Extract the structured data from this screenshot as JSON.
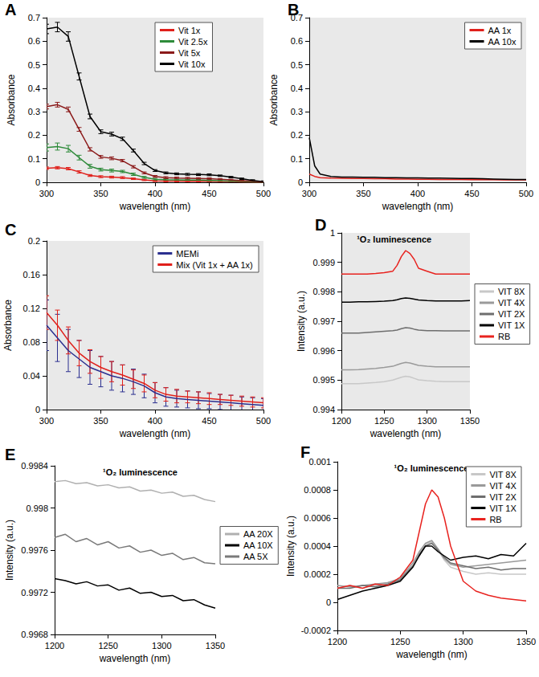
{
  "chart_data": [
    {
      "panel": "A",
      "type": "line",
      "x_label": "wavelength (nm)",
      "y_label": "Absorbance",
      "x": [
        300,
        310,
        320,
        330,
        340,
        350,
        360,
        370,
        380,
        390,
        400,
        410,
        420,
        430,
        440,
        450,
        460,
        470,
        480,
        490,
        500
      ],
      "xlim": [
        300,
        500
      ],
      "xticks": [
        300,
        350,
        400,
        450,
        500
      ],
      "ylim": [
        0,
        0.7
      ],
      "yticks": [
        0,
        0.1,
        0.2,
        0.3,
        0.4,
        0.5,
        0.6,
        0.7
      ],
      "grid": false,
      "legend": "upper center",
      "series": [
        {
          "name": "Vit 1x",
          "color": "#e0201b",
          "values": [
            0.06,
            0.062,
            0.058,
            0.044,
            0.029,
            0.024,
            0.022,
            0.02,
            0.015,
            0.01,
            0.006,
            0.005,
            0.005,
            0.004,
            0.004,
            0.004,
            0.003,
            0.003,
            0.002,
            0.001,
            0.001
          ],
          "errors": [
            0.005,
            0.005,
            0.005,
            0.005,
            0.004,
            0.004,
            0.004,
            0.004,
            0.003,
            0.003,
            0.003,
            0.003,
            0.003,
            0.003,
            0.003,
            0.003,
            0.003,
            0.003,
            0.003,
            0.003,
            0.003
          ]
        },
        {
          "name": "Vit 2.5x",
          "color": "#2e8b3a",
          "values": [
            0.148,
            0.152,
            0.143,
            0.105,
            0.068,
            0.054,
            0.05,
            0.046,
            0.034,
            0.021,
            0.013,
            0.011,
            0.01,
            0.009,
            0.009,
            0.008,
            0.007,
            0.005,
            0.004,
            0.002,
            0.001
          ],
          "errors": [
            0.015,
            0.015,
            0.014,
            0.01,
            0.008,
            0.006,
            0.006,
            0.005,
            0.005,
            0.004,
            0.004,
            0.004,
            0.004,
            0.004,
            0.004,
            0.004,
            0.003,
            0.003,
            0.003,
            0.003,
            0.003
          ]
        },
        {
          "name": "Vit 5x",
          "color": "#8b1a1a",
          "values": [
            0.322,
            0.33,
            0.31,
            0.225,
            0.14,
            0.108,
            0.102,
            0.092,
            0.066,
            0.04,
            0.025,
            0.02,
            0.018,
            0.017,
            0.016,
            0.015,
            0.013,
            0.01,
            0.007,
            0.004,
            0.002
          ],
          "errors": [
            0.01,
            0.01,
            0.01,
            0.008,
            0.007,
            0.006,
            0.006,
            0.005,
            0.005,
            0.004,
            0.004,
            0.004,
            0.004,
            0.004,
            0.004,
            0.004,
            0.003,
            0.003,
            0.003,
            0.003,
            0.003
          ]
        },
        {
          "name": "Vit 10x",
          "color": "#000000",
          "values": [
            0.652,
            0.66,
            0.62,
            0.45,
            0.28,
            0.215,
            0.205,
            0.185,
            0.135,
            0.08,
            0.05,
            0.04,
            0.036,
            0.034,
            0.033,
            0.032,
            0.028,
            0.022,
            0.015,
            0.008,
            0.003
          ],
          "errors": [
            0.02,
            0.02,
            0.02,
            0.015,
            0.01,
            0.008,
            0.008,
            0.007,
            0.006,
            0.005,
            0.004,
            0.004,
            0.004,
            0.004,
            0.004,
            0.004,
            0.003,
            0.003,
            0.003,
            0.003,
            0.003
          ]
        }
      ]
    },
    {
      "panel": "B",
      "type": "line",
      "x_label": "wavelength (nm)",
      "y_label": "Absorbance",
      "x": [
        300,
        305,
        310,
        320,
        330,
        340,
        350,
        360,
        370,
        380,
        390,
        400,
        410,
        420,
        430,
        440,
        450,
        460,
        470,
        480,
        490,
        500
      ],
      "xlim": [
        300,
        500
      ],
      "xticks": [
        300,
        350,
        400,
        450,
        500
      ],
      "ylim": [
        0,
        0.7
      ],
      "yticks": [
        0,
        0.1,
        0.2,
        0.3,
        0.4,
        0.5,
        0.6,
        0.7
      ],
      "grid": false,
      "legend": "upper right",
      "series": [
        {
          "name": "AA 1x",
          "color": "#e0201b",
          "values": [
            0.035,
            0.025,
            0.02,
            0.018,
            0.017,
            0.016,
            0.016,
            0.015,
            0.015,
            0.014,
            0.014,
            0.013,
            0.013,
            0.012,
            0.012,
            0.012,
            0.011,
            0.011,
            0.011,
            0.01,
            0.01,
            0.01
          ]
        },
        {
          "name": "AA 10x",
          "color": "#000000",
          "values": [
            0.19,
            0.07,
            0.035,
            0.025,
            0.022,
            0.022,
            0.021,
            0.021,
            0.02,
            0.02,
            0.019,
            0.019,
            0.018,
            0.018,
            0.017,
            0.016,
            0.016,
            0.015,
            0.014,
            0.013,
            0.012,
            0.012
          ]
        }
      ]
    },
    {
      "panel": "C",
      "type": "line",
      "x_label": "wavelength (nm)",
      "y_label": "Absorbance",
      "x": [
        300,
        310,
        320,
        330,
        340,
        350,
        360,
        370,
        380,
        390,
        400,
        410,
        420,
        430,
        440,
        450,
        460,
        470,
        480,
        490,
        500
      ],
      "xlim": [
        300,
        500
      ],
      "xticks": [
        300,
        350,
        400,
        450,
        500
      ],
      "ylim": [
        0,
        0.2
      ],
      "yticks": [
        0,
        0.04,
        0.08,
        0.12,
        0.16,
        0.2
      ],
      "grid": false,
      "legend": "upper right",
      "series": [
        {
          "name": "MEMi",
          "color": "#2b2f8f",
          "values": [
            0.1,
            0.085,
            0.07,
            0.06,
            0.05,
            0.045,
            0.04,
            0.037,
            0.033,
            0.028,
            0.02,
            0.015,
            0.013,
            0.012,
            0.011,
            0.01,
            0.009,
            0.008,
            0.007,
            0.006,
            0.005
          ],
          "errors": [
            0.03,
            0.028,
            0.025,
            0.022,
            0.02,
            0.018,
            0.017,
            0.016,
            0.015,
            0.014,
            0.012,
            0.011,
            0.01,
            0.01,
            0.01,
            0.009,
            0.009,
            0.009,
            0.008,
            0.008,
            0.008
          ]
        },
        {
          "name": "Mix (Vit 1x + AA 1x)",
          "color": "#e0201b",
          "values": [
            0.115,
            0.1,
            0.082,
            0.067,
            0.057,
            0.05,
            0.045,
            0.041,
            0.036,
            0.031,
            0.023,
            0.018,
            0.016,
            0.015,
            0.014,
            0.013,
            0.012,
            0.011,
            0.01,
            0.009,
            0.008
          ],
          "errors": [
            0.02,
            0.018,
            0.016,
            0.015,
            0.014,
            0.013,
            0.012,
            0.012,
            0.011,
            0.01,
            0.009,
            0.008,
            0.008,
            0.007,
            0.007,
            0.007,
            0.006,
            0.006,
            0.006,
            0.006,
            0.006
          ]
        }
      ]
    },
    {
      "panel": "D",
      "type": "line",
      "title": "¹O₂ luminescence",
      "x_label": "wavelength (nm)",
      "y_label": "Intensity (a.u.)",
      "x": [
        1200,
        1210,
        1220,
        1230,
        1240,
        1250,
        1260,
        1265,
        1270,
        1275,
        1280,
        1285,
        1290,
        1300,
        1310,
        1320,
        1330,
        1340,
        1350
      ],
      "xlim": [
        1200,
        1350
      ],
      "xticks": [
        1200,
        1250,
        1300,
        1350
      ],
      "ylim": [
        0.994,
        1
      ],
      "yticks": [
        0.994,
        0.995,
        0.996,
        0.997,
        0.998,
        0.999,
        1
      ],
      "grid": false,
      "legend": "right",
      "series": [
        {
          "name": "VIT 8X",
          "color": "#c8c8c8",
          "values": [
            0.99488,
            0.99488,
            0.99488,
            0.9949,
            0.99492,
            0.99495,
            0.995,
            0.99505,
            0.9951,
            0.99513,
            0.99511,
            0.99506,
            0.99501,
            0.99498,
            0.99496,
            0.99495,
            0.99495,
            0.99495,
            0.99495
          ]
        },
        {
          "name": "VIT 4X",
          "color": "#9a9a9a",
          "values": [
            0.99535,
            0.99535,
            0.99536,
            0.99538,
            0.9954,
            0.99543,
            0.99547,
            0.99552,
            0.99557,
            0.9956,
            0.99558,
            0.99554,
            0.9955,
            0.99547,
            0.99545,
            0.99545,
            0.99545,
            0.99545,
            0.99545
          ]
        },
        {
          "name": "VIT 2X",
          "color": "#6e6e6e",
          "values": [
            0.9966,
            0.9966,
            0.9966,
            0.99662,
            0.99664,
            0.99666,
            0.99668,
            0.9967,
            0.99675,
            0.99678,
            0.99677,
            0.99673,
            0.9967,
            0.99668,
            0.99668,
            0.99667,
            0.99667,
            0.99667,
            0.99667
          ]
        },
        {
          "name": "VIT 1X",
          "color": "#000000",
          "values": [
            0.99765,
            0.99765,
            0.99766,
            0.99766,
            0.99767,
            0.99768,
            0.9977,
            0.99773,
            0.99777,
            0.99779,
            0.99778,
            0.99775,
            0.99772,
            0.9977,
            0.99769,
            0.99769,
            0.99769,
            0.99769,
            0.9977
          ]
        },
        {
          "name": "RB",
          "color": "#e8231f",
          "values": [
            0.9986,
            0.9986,
            0.9986,
            0.9986,
            0.99862,
            0.99865,
            0.9987,
            0.9989,
            0.9992,
            0.9994,
            0.9993,
            0.9991,
            0.9988,
            0.9987,
            0.9986,
            0.9986,
            0.9986,
            0.9986,
            0.9986
          ]
        }
      ]
    },
    {
      "panel": "E",
      "type": "line",
      "title": "¹O₂ luminescence",
      "x_label": "wavelength (nm)",
      "y_label": "Intensity (a.u.)",
      "x": [
        1200,
        1210,
        1220,
        1230,
        1240,
        1250,
        1260,
        1270,
        1280,
        1290,
        1300,
        1310,
        1320,
        1330,
        1340,
        1350
      ],
      "xlim": [
        1200,
        1350
      ],
      "xticks": [
        1200,
        1250,
        1300,
        1350
      ],
      "ylim": [
        0.9968,
        0.9984
      ],
      "yticks": [
        0.9968,
        0.9972,
        0.9976,
        0.998,
        0.9984
      ],
      "grid": false,
      "legend": "right",
      "series": [
        {
          "name": "AA 20X",
          "color": "#b0b0b0",
          "values": [
            0.99825,
            0.99826,
            0.99823,
            0.99824,
            0.99821,
            0.99822,
            0.99819,
            0.9982,
            0.99816,
            0.99817,
            0.99814,
            0.99815,
            0.99811,
            0.99812,
            0.99808,
            0.99806
          ]
        },
        {
          "name": "AA 10X",
          "color": "#000000",
          "values": [
            0.99733,
            0.99731,
            0.99728,
            0.9973,
            0.99726,
            0.99727,
            0.99722,
            0.99724,
            0.99719,
            0.9972,
            0.99716,
            0.99717,
            0.99712,
            0.99713,
            0.99708,
            0.99705
          ]
        },
        {
          "name": "AA 5X",
          "color": "#7a7a7a",
          "values": [
            0.99772,
            0.99775,
            0.99768,
            0.99771,
            0.99765,
            0.99768,
            0.99762,
            0.99764,
            0.99758,
            0.9976,
            0.99755,
            0.99757,
            0.99751,
            0.99753,
            0.99748,
            0.99747
          ]
        }
      ]
    },
    {
      "panel": "F",
      "type": "line",
      "title": "¹O₂ luminescence",
      "x_label": "wavelength (nm)",
      "y_label": "Intensity (a.u.)",
      "x": [
        1200,
        1210,
        1220,
        1230,
        1240,
        1250,
        1260,
        1265,
        1270,
        1275,
        1280,
        1285,
        1290,
        1300,
        1310,
        1320,
        1330,
        1340,
        1350
      ],
      "xlim": [
        1200,
        1350
      ],
      "xticks": [
        1200,
        1250,
        1300,
        1350
      ],
      "ylim": [
        -0.0002,
        0.001
      ],
      "yticks": [
        -0.0002,
        0,
        0.0002,
        0.0004,
        0.0006,
        0.0008,
        0.001
      ],
      "grid": false,
      "legend": "upper right",
      "series": [
        {
          "name": "VIT 8X",
          "color": "#c8c8c8",
          "values": [
            0.0001,
            0.00012,
            0.0001,
            0.00012,
            0.00014,
            0.00016,
            0.00026,
            0.00035,
            0.00041,
            0.00043,
            0.00037,
            0.0003,
            0.00025,
            0.00022,
            0.0002,
            0.00021,
            0.0002,
            0.0002,
            0.0002
          ]
        },
        {
          "name": "VIT 4X",
          "color": "#9a9a9a",
          "values": [
            0.00012,
            0.00011,
            0.00012,
            0.00013,
            0.00014,
            0.00017,
            0.00028,
            0.00036,
            0.00042,
            0.00044,
            0.00038,
            0.00031,
            0.00027,
            0.00025,
            0.00026,
            0.00027,
            0.00028,
            0.00029,
            0.0003
          ]
        },
        {
          "name": "VIT 2X",
          "color": "#6e6e6e",
          "values": [
            0.0001,
            0.0001,
            0.00012,
            0.00011,
            0.00013,
            0.00016,
            0.00026,
            0.00034,
            0.0004,
            0.00042,
            0.00037,
            0.00032,
            0.00028,
            0.00026,
            0.00024,
            0.00025,
            0.00023,
            0.00024,
            0.00024
          ]
        },
        {
          "name": "VIT 1X",
          "color": "#000000",
          "values": [
            2e-05,
            5e-05,
            8e-05,
            0.0001,
            0.00012,
            0.00015,
            0.00025,
            0.00033,
            0.0004,
            0.0004,
            0.00036,
            0.00033,
            0.0003,
            0.00032,
            0.00033,
            0.00031,
            0.00034,
            0.00033,
            0.00042
          ]
        },
        {
          "name": "RB",
          "color": "#e8231f",
          "values": [
            0.0001,
            0.00012,
            0.0001,
            0.00013,
            0.00012,
            0.00018,
            0.0003,
            0.0005,
            0.0007,
            0.0008,
            0.00075,
            0.0006,
            0.0004,
            0.00015,
            8e-05,
            5e-05,
            3e-05,
            2e-05,
            1e-05
          ]
        }
      ]
    }
  ]
}
